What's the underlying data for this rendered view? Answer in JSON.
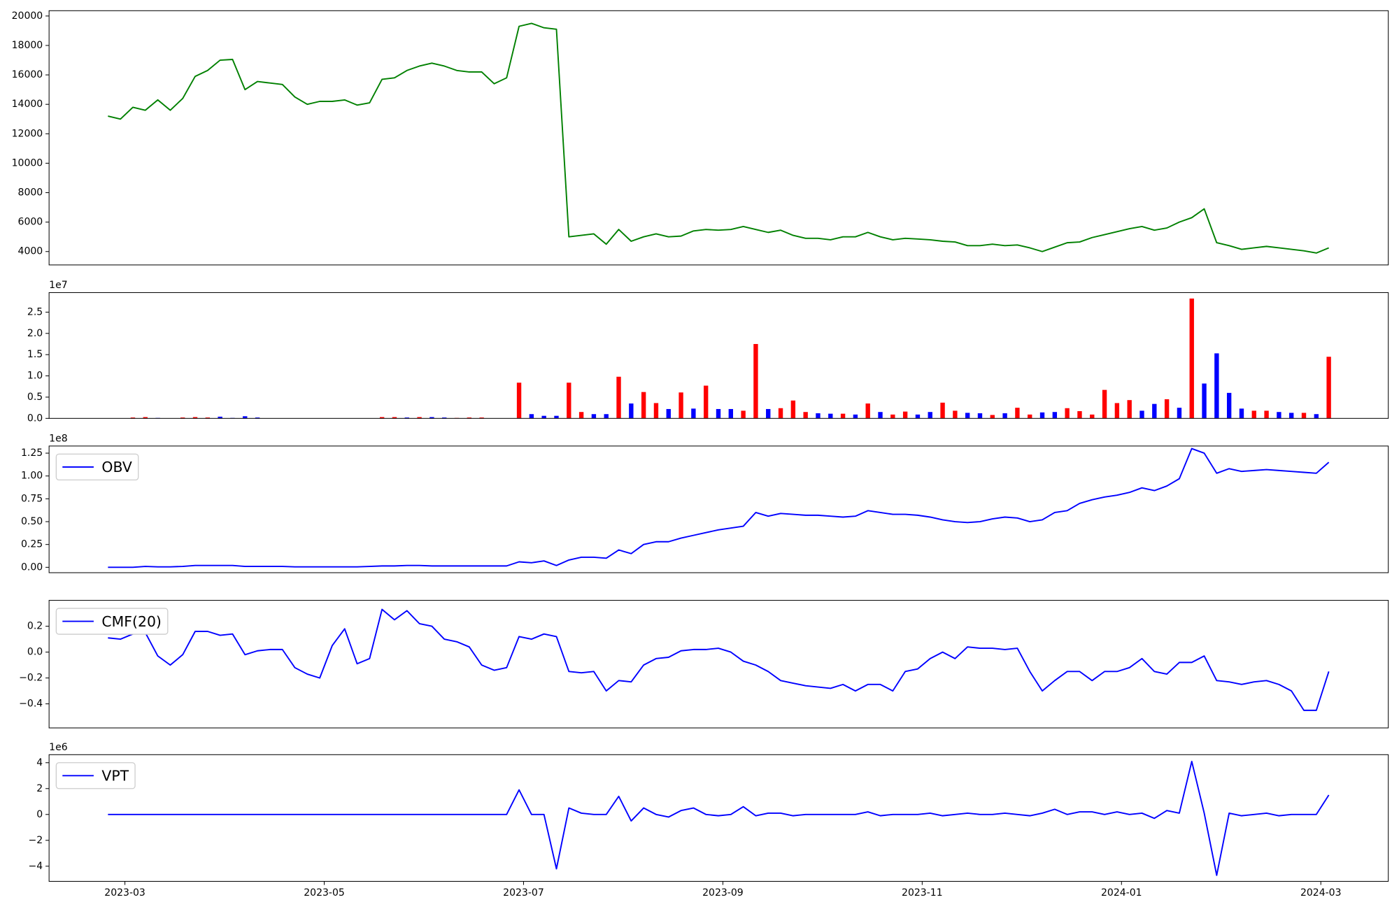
{
  "chart_data": {
    "type": "panels",
    "xlim": [
      -0.761,
      12.677
    ],
    "xticks": [
      {
        "value": 0,
        "label": "2023-03"
      },
      {
        "value": 2,
        "label": "2023-05"
      },
      {
        "value": 4,
        "label": "2023-07"
      },
      {
        "value": 6,
        "label": "2023-09"
      },
      {
        "value": 8,
        "label": "2023-11"
      },
      {
        "value": 10,
        "label": "2024-01"
      },
      {
        "value": 12,
        "label": "2024-03"
      }
    ],
    "x": [
      -0.17,
      -0.045,
      0.08,
      0.205,
      0.33,
      0.455,
      0.58,
      0.705,
      0.83,
      0.955,
      1.08,
      1.205,
      1.33,
      1.455,
      1.58,
      1.705,
      1.83,
      1.955,
      2.08,
      2.205,
      2.33,
      2.455,
      2.58,
      2.705,
      2.83,
      2.955,
      3.08,
      3.205,
      3.33,
      3.455,
      3.58,
      3.705,
      3.83,
      3.955,
      4.08,
      4.205,
      4.33,
      4.455,
      4.58,
      4.705,
      4.83,
      4.955,
      5.08,
      5.205,
      5.33,
      5.455,
      5.58,
      5.705,
      5.83,
      5.955,
      6.08,
      6.205,
      6.33,
      6.455,
      6.58,
      6.705,
      6.83,
      6.955,
      7.08,
      7.205,
      7.33,
      7.455,
      7.58,
      7.705,
      7.83,
      7.955,
      8.08,
      8.205,
      8.33,
      8.455,
      8.58,
      8.705,
      8.83,
      8.955,
      9.08,
      9.205,
      9.33,
      9.455,
      9.58,
      9.705,
      9.83,
      9.955,
      10.08,
      10.205,
      10.33,
      10.455,
      10.58,
      10.705,
      10.83,
      10.955,
      11.08,
      11.205,
      11.33,
      11.455,
      11.58,
      11.705,
      11.83,
      11.955,
      12.08
    ],
    "panels": [
      {
        "type": "line",
        "ylim": [
          3090,
          20360
        ],
        "yticks": [
          4000,
          6000,
          8000,
          10000,
          12000,
          14000,
          16000,
          18000,
          20000
        ],
        "series": [
          {
            "color": "#008000",
            "values": [
              13200,
              13000,
              13800,
              13600,
              14300,
              13600,
              14400,
              15900,
              16300,
              17000,
              17050,
              15000,
              15550,
              15450,
              15350,
              14500,
              14000,
              14200,
              14200,
              14300,
              13950,
              14100,
              15700,
              15800,
              16300,
              16600,
              16800,
              16600,
              16300,
              16200,
              16200,
              15400,
              15800,
              19300,
              19500,
              19200,
              19100,
              5000,
              5100,
              5200,
              4500,
              5500,
              4700,
              5000,
              5200,
              5000,
              5050,
              5400,
              5500,
              5450,
              5500,
              5700,
              5500,
              5300,
              5450,
              5100,
              4900,
              4900,
              4800,
              5000,
              5000,
              5300,
              5000,
              4800,
              4900,
              4850,
              4800,
              4700,
              4650,
              4400,
              4400,
              4500,
              4400,
              4450,
              4250,
              4000,
              4300,
              4600,
              4650,
              4950,
              5150,
              5350,
              5550,
              5700,
              5450,
              5600,
              6000,
              6300,
              6900,
              4600,
              4400,
              4150,
              4250,
              4350,
              4250,
              4150,
              4050,
              3900,
              4250
            ]
          }
        ]
      },
      {
        "type": "bar",
        "ylim": [
          0,
          29600000
        ],
        "offset_text": "1e7",
        "yticks": [
          {
            "value": 0,
            "label": "0.0"
          },
          {
            "value": 5000000,
            "label": "0.5"
          },
          {
            "value": 10000000,
            "label": "1.0"
          },
          {
            "value": 15000000,
            "label": "1.5"
          },
          {
            "value": 20000000,
            "label": "2.0"
          },
          {
            "value": 25000000,
            "label": "2.5"
          }
        ],
        "values": [
          0,
          0,
          200000,
          300000,
          100000,
          0,
          200000,
          300000,
          200000,
          400000,
          100000,
          500000,
          200000,
          0,
          0,
          0,
          0,
          0,
          0,
          0,
          0,
          0,
          300000,
          300000,
          200000,
          300000,
          300000,
          200000,
          100000,
          200000,
          200000,
          0,
          0,
          8400000,
          1000000,
          600000,
          600000,
          8400000,
          1500000,
          1000000,
          1000000,
          9800000,
          3500000,
          6200000,
          3600000,
          2200000,
          6100000,
          2300000,
          7700000,
          2200000,
          2200000,
          1800000,
          17500000,
          2200000,
          2400000,
          4200000,
          1500000,
          1200000,
          1100000,
          1100000,
          900000,
          3500000,
          1500000,
          900000,
          1600000,
          900000,
          1500000,
          3700000,
          1800000,
          1300000,
          1200000,
          800000,
          1200000,
          2500000,
          900000,
          1400000,
          1500000,
          2400000,
          1700000,
          900000,
          6700000,
          3600000,
          4300000,
          1800000,
          3400000,
          4500000,
          2500000,
          28200000,
          8200000,
          15300000,
          6000000,
          2300000,
          1800000,
          1800000,
          1500000,
          1300000,
          1300000,
          1000000,
          14500000
        ],
        "colors": [
          "blue",
          "blue",
          "red",
          "red",
          "blue",
          "blue",
          "red",
          "red",
          "red",
          "blue",
          "blue",
          "blue",
          "blue",
          "blue",
          "blue",
          "blue",
          "blue",
          "blue",
          "blue",
          "blue",
          "blue",
          "blue",
          "red",
          "red",
          "blue",
          "red",
          "blue",
          "blue",
          "red",
          "red",
          "red",
          "blue",
          "blue",
          "red",
          "blue",
          "blue",
          "blue",
          "red",
          "red",
          "blue",
          "blue",
          "red",
          "blue",
          "red",
          "red",
          "blue",
          "red",
          "blue",
          "red",
          "blue",
          "blue",
          "red",
          "red",
          "blue",
          "red",
          "red",
          "red",
          "blue",
          "blue",
          "red",
          "blue",
          "red",
          "blue",
          "red",
          "red",
          "blue",
          "blue",
          "red",
          "red",
          "blue",
          "blue",
          "red",
          "blue",
          "red",
          "red",
          "blue",
          "blue",
          "red",
          "red",
          "red",
          "red",
          "red",
          "red",
          "blue",
          "blue",
          "red",
          "blue",
          "red",
          "blue",
          "blue",
          "blue",
          "blue",
          "red",
          "red",
          "blue",
          "blue",
          "red",
          "blue",
          "red"
        ]
      },
      {
        "type": "line",
        "ylim": [
          -5900000,
          132800000
        ],
        "offset_text": "1e8",
        "legend": "upper left",
        "yticks": [
          {
            "value": 0,
            "label": "0.00"
          },
          {
            "value": 25000000,
            "label": "0.25"
          },
          {
            "value": 50000000,
            "label": "0.50"
          },
          {
            "value": 75000000,
            "label": "0.75"
          },
          {
            "value": 100000000,
            "label": "1.00"
          },
          {
            "value": 125000000,
            "label": "1.25"
          }
        ],
        "series": [
          {
            "name": "OBV",
            "color": "#0000ff",
            "values": [
              0,
              0,
              0,
              1000000,
              500000,
              500000,
              1000000,
              2000000,
              2000000,
              2000000,
              2000000,
              1000000,
              1000000,
              1000000,
              1000000,
              500000,
              500000,
              500000,
              500000,
              500000,
              500000,
              1000000,
              1500000,
              1500000,
              2000000,
              2000000,
              1500000,
              1500000,
              1500000,
              1500000,
              1500000,
              1500000,
              1500000,
              6000000,
              5000000,
              7000000,
              2000000,
              8000000,
              11000000,
              11000000,
              10000000,
              19000000,
              15000000,
              25000000,
              28000000,
              28000000,
              32000000,
              35000000,
              38000000,
              41000000,
              43000000,
              45000000,
              60000000,
              56000000,
              59000000,
              58000000,
              57000000,
              57000000,
              56000000,
              55000000,
              56000000,
              62000000,
              60000000,
              58000000,
              58000000,
              57000000,
              55000000,
              52000000,
              50000000,
              49000000,
              50000000,
              53000000,
              55000000,
              54000000,
              50000000,
              52000000,
              60000000,
              62000000,
              70000000,
              74000000,
              77000000,
              79000000,
              82000000,
              87000000,
              84000000,
              89000000,
              97000000,
              130000000,
              125000000,
              103000000,
              108000000,
              105000000,
              106000000,
              107000000,
              106000000,
              105000000,
              104000000,
              103000000,
              115000000
            ]
          }
        ]
      },
      {
        "type": "line",
        "ylim": [
          -0.586,
          0.4
        ],
        "legend": "upper left",
        "yticks": [
          {
            "value": -0.4,
            "label": "−0.4"
          },
          {
            "value": -0.2,
            "label": "−0.2"
          },
          {
            "value": 0,
            "label": "0.0"
          },
          0.2
        ],
        "series": [
          {
            "name": "CMF(20)",
            "color": "#0000ff",
            "values": [
              0.11,
              0.1,
              0.14,
              0.15,
              -0.03,
              -0.1,
              -0.02,
              0.16,
              0.16,
              0.13,
              0.14,
              -0.02,
              0.01,
              0.02,
              0.02,
              -0.12,
              -0.17,
              -0.2,
              0.05,
              0.18,
              -0.09,
              -0.05,
              0.33,
              0.25,
              0.32,
              0.22,
              0.2,
              0.1,
              0.08,
              0.04,
              -0.1,
              -0.14,
              -0.12,
              0.12,
              0.1,
              0.14,
              0.12,
              -0.15,
              -0.16,
              -0.15,
              -0.3,
              -0.22,
              -0.23,
              -0.1,
              -0.05,
              -0.04,
              0.01,
              0.02,
              0.02,
              0.03,
              0.0,
              -0.07,
              -0.1,
              -0.15,
              -0.22,
              -0.24,
              -0.26,
              -0.27,
              -0.28,
              -0.25,
              -0.3,
              -0.25,
              -0.25,
              -0.3,
              -0.15,
              -0.13,
              -0.05,
              0.0,
              -0.05,
              0.04,
              0.03,
              0.03,
              0.02,
              0.03,
              -0.15,
              -0.3,
              -0.22,
              -0.15,
              -0.15,
              -0.22,
              -0.15,
              -0.15,
              -0.12,
              -0.05,
              -0.15,
              -0.17,
              -0.08,
              -0.08,
              -0.03,
              -0.22,
              -0.23,
              -0.25,
              -0.23,
              -0.22,
              -0.25,
              -0.3,
              -0.45,
              -0.45,
              -0.15
            ]
          }
        ]
      },
      {
        "type": "line",
        "ylim": [
          -5170000,
          4620000
        ],
        "offset_text": "1e6",
        "legend": "upper left",
        "yticks": [
          {
            "value": -4000000,
            "label": "−4"
          },
          {
            "value": -2000000,
            "label": "−2"
          },
          {
            "value": 0,
            "label": "0"
          },
          {
            "value": 2000000,
            "label": "2"
          },
          {
            "value": 4000000,
            "label": "4"
          }
        ],
        "series": [
          {
            "name": "VPT",
            "color": "#0000ff",
            "values": [
              0,
              0,
              0,
              0,
              0,
              0,
              0,
              0,
              0,
              0,
              0,
              0,
              0,
              0,
              0,
              0,
              0,
              0,
              0,
              0,
              0,
              0,
              0,
              0,
              0,
              0,
              0,
              0,
              0,
              0,
              0,
              0,
              0,
              1900000,
              0,
              0,
              -4200000,
              500000,
              100000,
              0,
              0,
              1400000,
              -500000,
              500000,
              0,
              -200000,
              300000,
              500000,
              0,
              -100000,
              0,
              600000,
              -100000,
              100000,
              100000,
              -100000,
              0,
              0,
              0,
              0,
              0,
              200000,
              -100000,
              0,
              0,
              0,
              100000,
              -100000,
              0,
              100000,
              0,
              0,
              100000,
              0,
              -100000,
              100000,
              400000,
              0,
              200000,
              200000,
              0,
              200000,
              0,
              100000,
              -300000,
              300000,
              100000,
              4100000,
              100000,
              -4700000,
              100000,
              -100000,
              0,
              100000,
              -100000,
              0,
              0,
              0,
              1500000
            ]
          }
        ]
      }
    ]
  }
}
